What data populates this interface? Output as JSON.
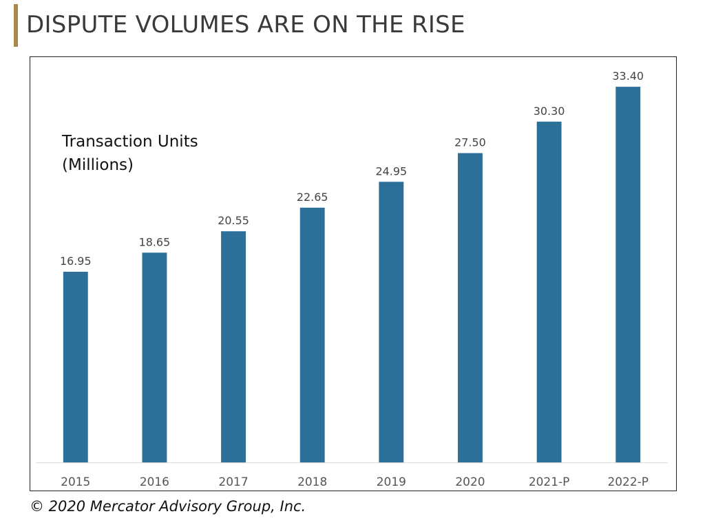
{
  "slide": {
    "title": "DISPUTE VOLUMES ARE ON THE RISE",
    "copyright": "© 2020 Mercator Advisory Group, Inc."
  },
  "colors": {
    "accent": "#a8884a",
    "bar": "#2c6f99"
  },
  "chart_data": {
    "type": "bar",
    "title": "",
    "ylabel": "",
    "xlabel": "",
    "unit_annotation": [
      "Transaction Units",
      "(Millions)"
    ],
    "categories": [
      "2015",
      "2016",
      "2017",
      "2018",
      "2019",
      "2020",
      "2021-P",
      "2022-P"
    ],
    "values": [
      16.95,
      18.65,
      20.55,
      22.65,
      24.95,
      27.5,
      30.3,
      33.4
    ],
    "value_labels": [
      "16.95",
      "18.65",
      "20.55",
      "22.65",
      "24.95",
      "27.50",
      "30.30",
      "33.40"
    ],
    "ylim": [
      0,
      35
    ],
    "grid": false,
    "legend": "none"
  }
}
